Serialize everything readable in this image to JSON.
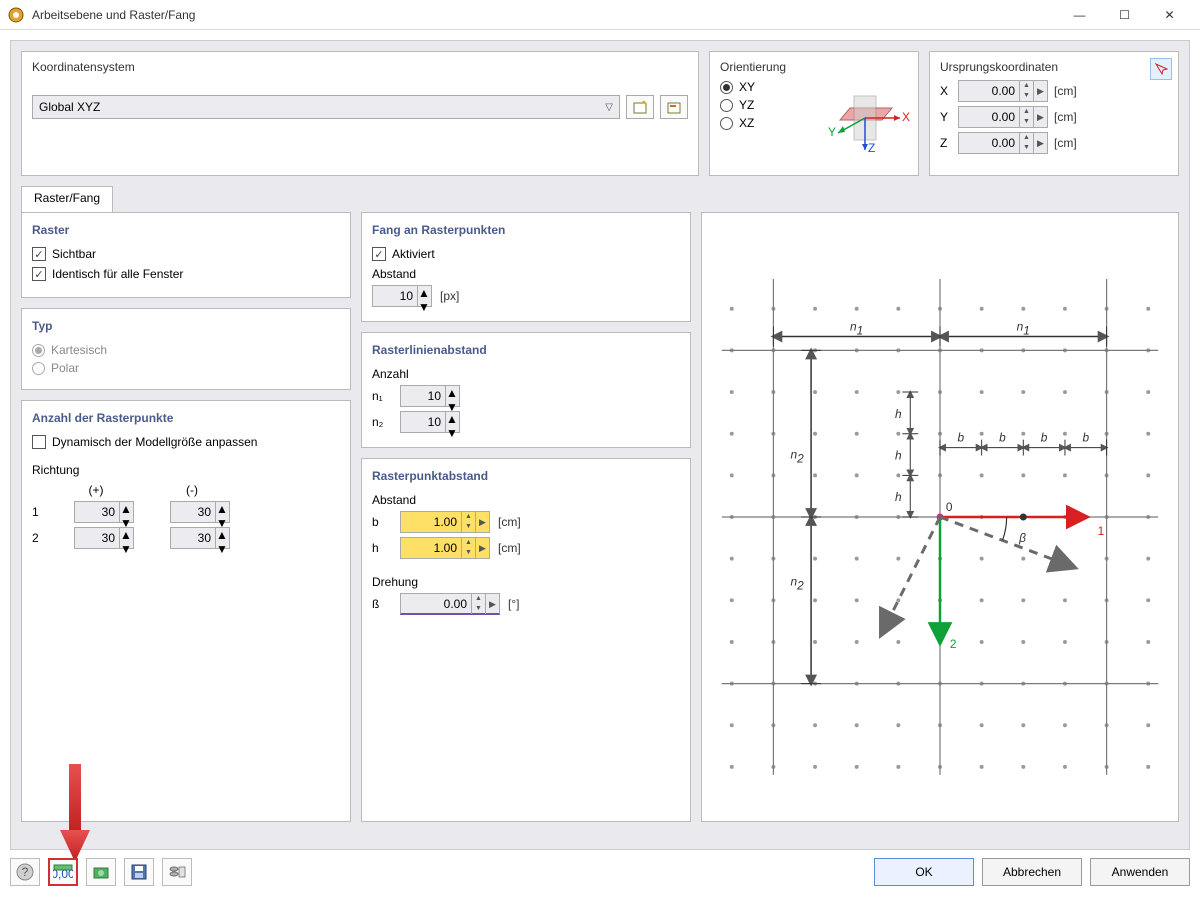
{
  "window": {
    "title": "Arbeitsebene und Raster/Fang",
    "minimize": "—",
    "maximize": "☐",
    "close": "✕"
  },
  "coord_system": {
    "label": "Koordinatensystem",
    "value": "Global XYZ"
  },
  "orientation": {
    "label": "Orientierung",
    "options": [
      "XY",
      "YZ",
      "XZ"
    ],
    "selected": "XY"
  },
  "origin": {
    "label": "Ursprungskoordinaten",
    "x_label": "X",
    "x_value": "0.00",
    "y_label": "Y",
    "y_value": "0.00",
    "z_label": "Z",
    "z_value": "0.00",
    "unit": "[cm]"
  },
  "tab": {
    "label": "Raster/Fang"
  },
  "raster": {
    "title": "Raster",
    "visible_label": "Sichtbar",
    "visible_checked": "✓",
    "identical_label": "Identisch für alle Fenster",
    "identical_checked": "✓"
  },
  "typ": {
    "title": "Typ",
    "cartesian": "Kartesisch",
    "polar": "Polar"
  },
  "count": {
    "title": "Anzahl der Rasterpunkte",
    "dynamic_label": "Dynamisch der Modellgröße anpassen",
    "direction_label": "Richtung",
    "plus": "(+)",
    "minus": "(-)",
    "row1": "1",
    "row2": "2",
    "v1p": "30",
    "v1m": "30",
    "v2p": "30",
    "v2m": "30"
  },
  "snap": {
    "title": "Fang an Rasterpunkten",
    "active_label": "Aktiviert",
    "active_checked": "✓",
    "dist_label": "Abstand",
    "dist_value": "10",
    "dist_unit": "[px]"
  },
  "line_spacing": {
    "title": "Rasterlinienabstand",
    "count_label": "Anzahl",
    "n1_label": "n₁",
    "n1_value": "10",
    "n2_label": "n₂",
    "n2_value": "10"
  },
  "point_spacing": {
    "title": "Rasterpunktabstand",
    "dist_label": "Abstand",
    "b_label": "b",
    "b_value": "1.00",
    "h_label": "h",
    "h_value": "1.00",
    "unit": "[cm]",
    "rotation_label": "Drehung",
    "beta_label": "ß",
    "beta_value": "0.00",
    "beta_unit": "[°]"
  },
  "buttons": {
    "ok": "OK",
    "cancel": "Abbrechen",
    "apply": "Anwenden"
  },
  "diagram": {
    "dot_color": "#9a9a9a",
    "line_color": "#7a7a7a",
    "red": "#d82020",
    "green": "#10a038",
    "dash": "#6a6a6a",
    "labels": {
      "n1": "n",
      "n1sub": "1",
      "n2": "n",
      "n2sub": "2",
      "b": "b",
      "h": "h",
      "zero": "0",
      "one": "1",
      "two": "2",
      "beta": "β"
    }
  }
}
